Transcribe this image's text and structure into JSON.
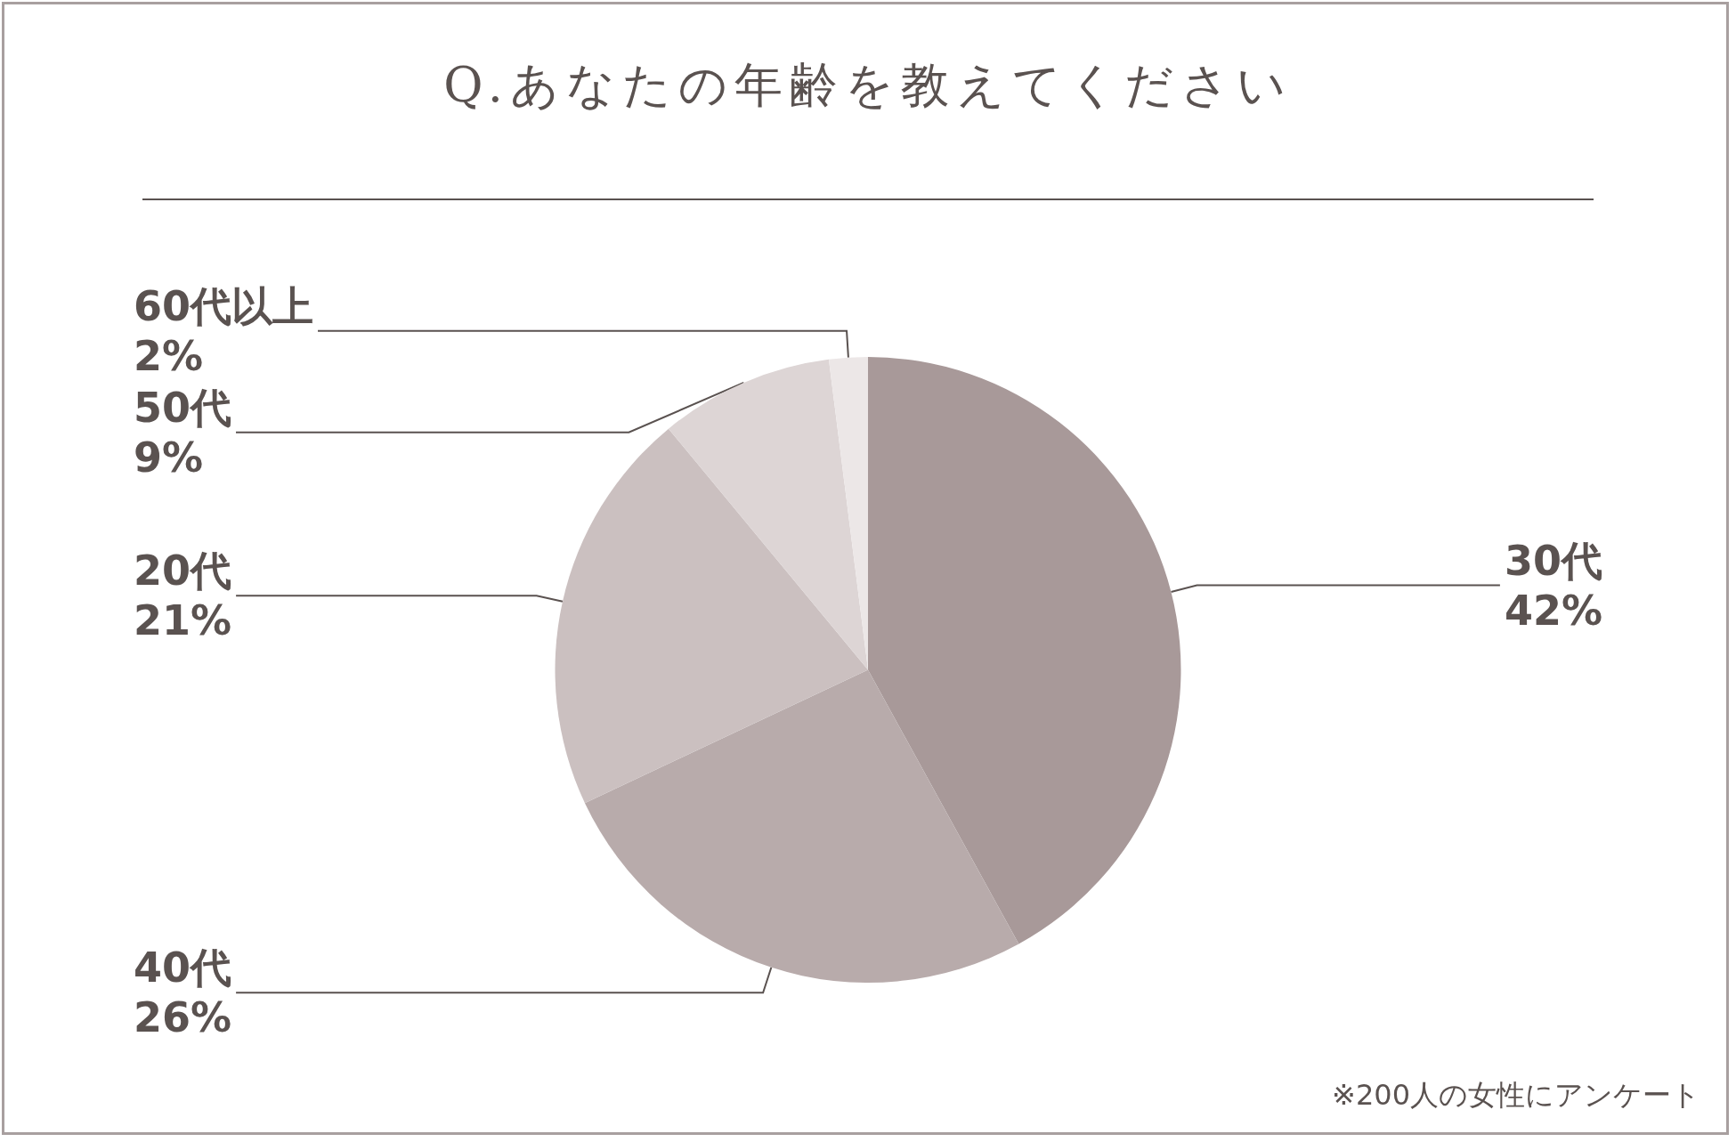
{
  "chart_data": {
    "type": "pie",
    "title": "Q.あなたの年齢を教えてください",
    "categories": [
      "30代",
      "40代",
      "20代",
      "50代",
      "60代以上"
    ],
    "values": [
      42,
      26,
      21,
      9,
      2
    ],
    "value_labels": [
      "42%",
      "26%",
      "21%",
      "9%",
      "2%"
    ],
    "colors": [
      "#a89999",
      "#b8abab",
      "#cbc0c0",
      "#ddd5d5",
      "#ece7e7"
    ],
    "annotations": [
      "※200人の女性にアンケート"
    ],
    "legend": false
  }
}
